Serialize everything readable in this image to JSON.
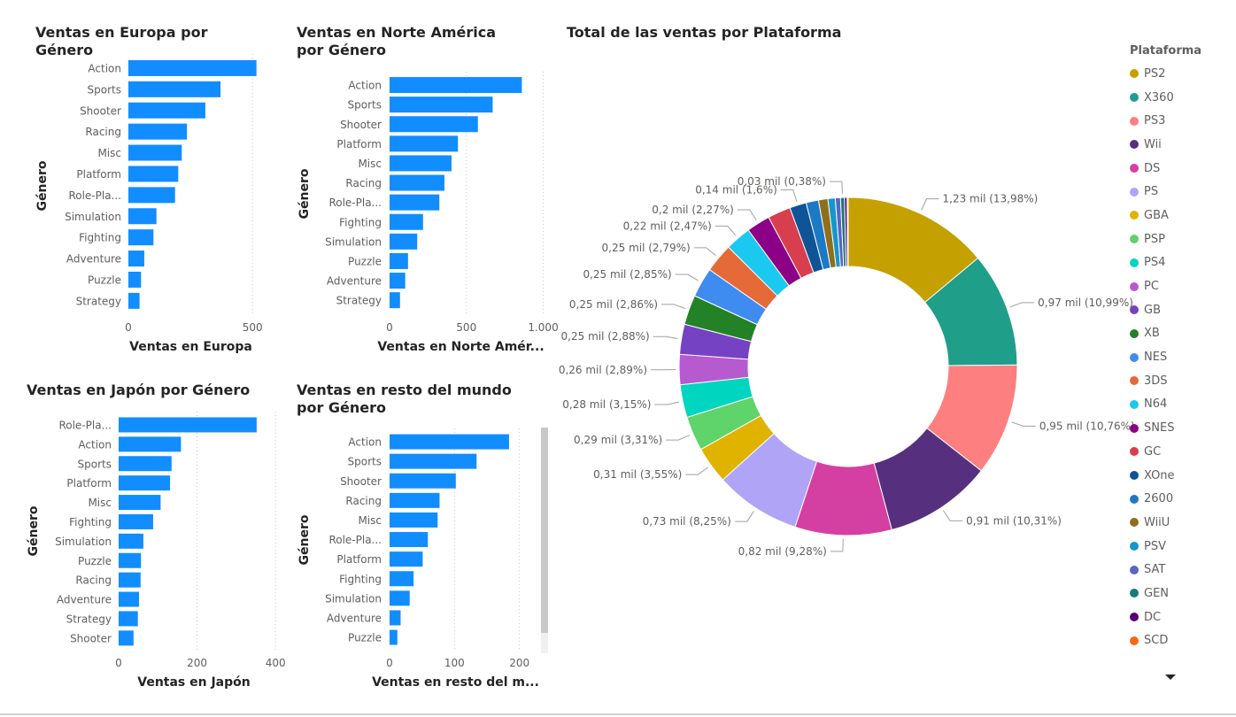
{
  "colors": {
    "bar": "#118DFF",
    "grid": "#c8c8c8",
    "text": "#605e5c",
    "title": "#252423"
  },
  "chart_data": [
    {
      "id": "eu",
      "type": "bar",
      "orientation": "horizontal",
      "title": "Ventas en Europa por Género",
      "xlabel": "Ventas en Europa",
      "ylabel": "Género",
      "categories": [
        "Action",
        "Sports",
        "Shooter",
        "Racing",
        "Misc",
        "Platform",
        "Role-Pla...",
        "Simulation",
        "Fighting",
        "Adventure",
        "Puzzle",
        "Strategy"
      ],
      "values": [
        516,
        371,
        310,
        236,
        215,
        201,
        188,
        113,
        101,
        64,
        51,
        45
      ],
      "xticks": [
        0,
        500
      ],
      "xtick_labels": [
        "0",
        "500"
      ],
      "xlim": [
        0,
        560
      ]
    },
    {
      "id": "na",
      "type": "bar",
      "orientation": "horizontal",
      "title": "Ventas en Norte América por Género",
      "xlabel": "Ventas en Norte Amér...",
      "ylabel": "Género",
      "categories": [
        "Action",
        "Sports",
        "Shooter",
        "Platform",
        "Misc",
        "Racing",
        "Role-Pla...",
        "Fighting",
        "Simulation",
        "Puzzle",
        "Adventure",
        "Strategy"
      ],
      "values": [
        861,
        671,
        575,
        445,
        403,
        357,
        324,
        218,
        180,
        120,
        102,
        68
      ],
      "xticks": [
        0,
        500,
        1000
      ],
      "xtick_labels": [
        "0",
        "500",
        "1.000"
      ],
      "xlim": [
        0,
        1020
      ]
    },
    {
      "id": "jp",
      "type": "bar",
      "orientation": "horizontal",
      "title": "Ventas en Japón por Género",
      "xlabel": "Ventas en Japón",
      "ylabel": "Género",
      "categories": [
        "Role-Pla...",
        "Action",
        "Sports",
        "Platform",
        "Misc",
        "Fighting",
        "Simulation",
        "Puzzle",
        "Racing",
        "Adventure",
        "Strategy",
        "Shooter"
      ],
      "values": [
        352,
        159,
        135,
        131,
        107,
        88,
        63,
        57,
        56,
        52,
        49,
        38
      ],
      "xticks": [
        0,
        200,
        400
      ],
      "xtick_labels": [
        "0",
        "200",
        "400"
      ],
      "xlim": [
        0,
        420
      ]
    },
    {
      "id": "rw",
      "type": "bar",
      "orientation": "horizontal",
      "title": "Ventas en resto del mundo por Género",
      "xlabel": "Ventas en resto del m...",
      "ylabel": "Género",
      "categories": [
        "Action",
        "Sports",
        "Shooter",
        "Racing",
        "Misc",
        "Role-Pla...",
        "Platform",
        "Fighting",
        "Simulation",
        "Adventure",
        "Puzzle"
      ],
      "values": [
        184,
        134,
        102,
        77,
        74,
        59,
        51,
        37,
        31,
        17,
        12
      ],
      "xticks": [
        0,
        100,
        200
      ],
      "xtick_labels": [
        "0",
        "100",
        "200"
      ],
      "xlim": [
        0,
        225
      ]
    },
    {
      "id": "platform",
      "type": "pie",
      "subtype": "donut",
      "title": "Total de las ventas por Plataforma",
      "legend_title": "Plataforma",
      "legend_position": "right",
      "categories": [
        "PS2",
        "X360",
        "PS3",
        "Wii",
        "DS",
        "PS",
        "GBA",
        "PSP",
        "PS4",
        "PC",
        "GB",
        "XB",
        "NES",
        "3DS",
        "N64",
        "SNES",
        "GC",
        "XOne",
        "2600",
        "WiiU",
        "PSV",
        "SAT",
        "GEN",
        "DC",
        "SCD"
      ],
      "values": [
        1.23,
        0.97,
        0.95,
        0.91,
        0.82,
        0.73,
        0.31,
        0.29,
        0.28,
        0.26,
        0.25,
        0.25,
        0.25,
        0.25,
        0.22,
        0.2,
        0.2,
        0.14,
        0.1,
        0.08,
        0.06,
        0.04,
        0.03,
        0.02,
        0.01
      ],
      "percents": [
        13.98,
        10.99,
        10.76,
        10.31,
        9.28,
        8.25,
        3.55,
        3.31,
        3.15,
        2.89,
        2.88,
        2.86,
        2.85,
        2.79,
        2.47,
        2.27,
        2.2,
        1.6,
        1.2,
        0.9,
        0.7,
        0.5,
        0.38,
        0.25,
        0.1
      ],
      "data_labels": [
        "1,23 mil (13,98%)",
        "0,97 mil (10,99%)",
        "0,95 mil (10,76%)",
        "0,91 mil (10,31%)",
        "0,82 mil (9,28%)",
        "0,73 mil (8,25%)",
        "0,31 mil (3,55%)",
        "0,29 mil (3,31%)",
        "0,28 mil (3,15%)",
        "0,26 mil (2,89%)",
        "0,25 mil (2,88%)",
        "0,25 mil (2,86%)",
        "0,25 mil (2,85%)",
        "0,25 mil (2,79%)",
        "0,22 mil (2,47%)",
        "0,2 mil (2,27%)",
        "",
        "0,14 mil (1,6%)",
        "",
        "",
        "",
        "",
        "0,03 mil (0,38%)",
        "",
        ""
      ],
      "colors": [
        "#C4A000",
        "#1F9E89",
        "#FD7F7F",
        "#56307E",
        "#D43FA2",
        "#B0A4F7",
        "#E0B300",
        "#5ED46A",
        "#00D5C0",
        "#B85ACF",
        "#7542C3",
        "#238226",
        "#3F8CF0",
        "#E56A38",
        "#1AC8F0",
        "#8C0087",
        "#D83F4E",
        "#0E5497",
        "#1B79C7",
        "#8F6F1C",
        "#1497C9",
        "#5C63C7",
        "#177C78",
        "#5A0076",
        "#F56A12"
      ]
    }
  ]
}
